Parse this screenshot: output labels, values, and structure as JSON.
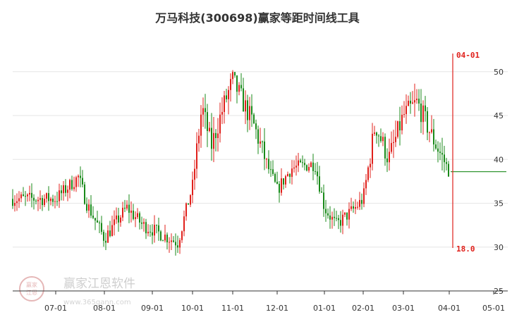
{
  "chart_data": {
    "type": "candlestick",
    "title": "万马科技(300698)赢家等距时间线工具",
    "y_ticks": [
      "50",
      "45",
      "40",
      "35",
      "30",
      "25"
    ],
    "ylim": [
      25,
      54
    ],
    "x_ticks": [
      "07-01",
      "08-01",
      "09-01",
      "10-01",
      "11-01",
      "12-01",
      "01-01",
      "02-01",
      "03-01",
      "04-01",
      "05-01"
    ],
    "grid": true,
    "up_color": "#e0201b",
    "down_color": "#1a8a1a",
    "marker": {
      "date_label": "04-01",
      "value_label": "18.0",
      "color": "#e0201b"
    },
    "last_price": 38.6,
    "approx_close_path": [
      {
        "m": "07-01",
        "v": 35.5
      },
      {
        "m": "07-15",
        "v": 38.0
      },
      {
        "m": "07-20",
        "v": 35.0
      },
      {
        "m": "08-01",
        "v": 31.0
      },
      {
        "m": "08-15",
        "v": 34.5
      },
      {
        "m": "08-25",
        "v": 32.5
      },
      {
        "m": "09-01",
        "v": 32.0
      },
      {
        "m": "09-20",
        "v": 30.5
      },
      {
        "m": "10-01",
        "v": 37.0
      },
      {
        "m": "10-08",
        "v": 46.0
      },
      {
        "m": "10-15",
        "v": 41.5
      },
      {
        "m": "10-25",
        "v": 46.5
      },
      {
        "m": "11-01",
        "v": 49.0
      },
      {
        "m": "11-15",
        "v": 44.0
      },
      {
        "m": "11-25",
        "v": 39.0
      },
      {
        "m": "12-01",
        "v": 36.5
      },
      {
        "m": "12-10",
        "v": 39.0
      },
      {
        "m": "12-25",
        "v": 39.5
      },
      {
        "m": "01-01",
        "v": 34.5
      },
      {
        "m": "01-10",
        "v": 32.5
      },
      {
        "m": "01-25",
        "v": 34.5
      },
      {
        "m": "02-01",
        "v": 35.5
      },
      {
        "m": "02-10",
        "v": 44.0
      },
      {
        "m": "02-20",
        "v": 40.0
      },
      {
        "m": "03-01",
        "v": 45.0
      },
      {
        "m": "03-10",
        "v": 46.5
      },
      {
        "m": "03-20",
        "v": 42.5
      },
      {
        "m": "03-31",
        "v": 38.6
      }
    ]
  },
  "watermark": {
    "text": "赢家江恩软件",
    "url": "www.365gann.com",
    "seal_top": "赢家",
    "seal_bottom": "江恩"
  }
}
